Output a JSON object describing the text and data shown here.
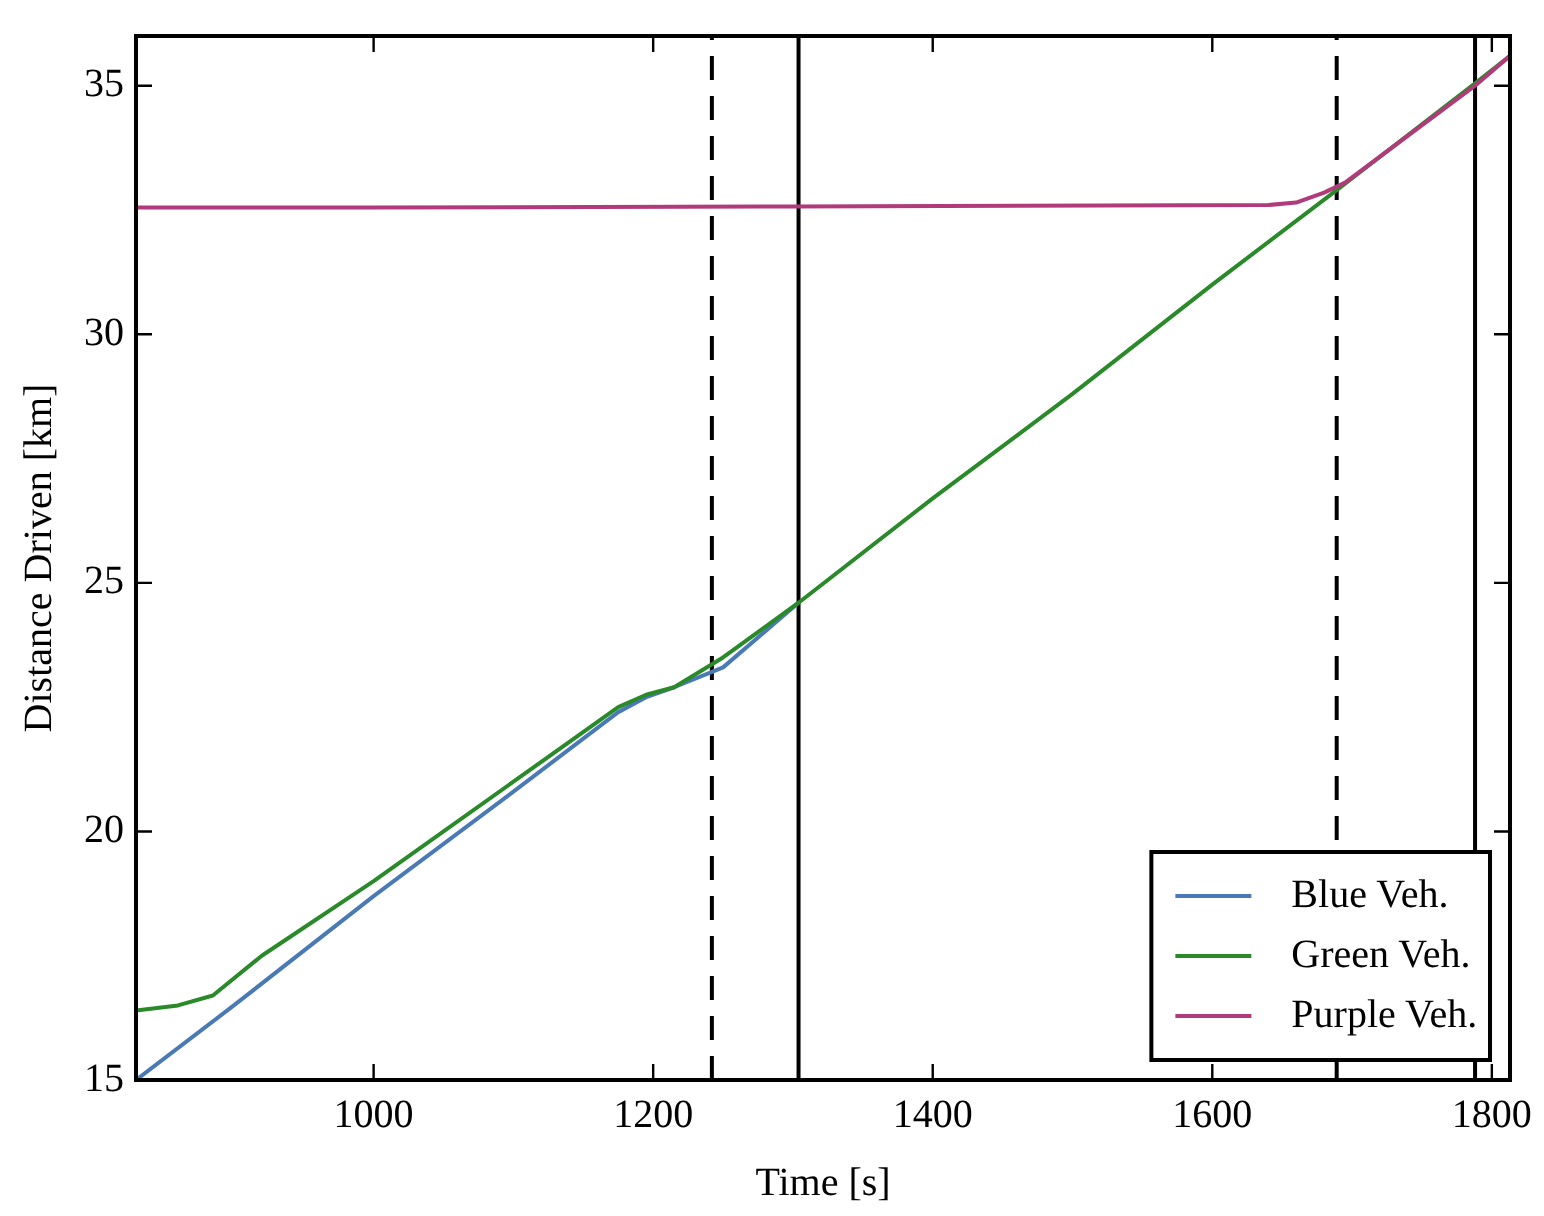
{
  "chart_data": {
    "type": "line",
    "xlabel": "Time [s]",
    "ylabel": "Distance Driven [km]",
    "xlim": [
      830,
      1813
    ],
    "xticks": [
      1000,
      1200,
      1400,
      1600,
      1800
    ],
    "ylim": [
      15,
      36
    ],
    "yticks": [
      15,
      20,
      25,
      30,
      35
    ],
    "grid": false,
    "legend": "bottom right",
    "marker": "none",
    "line_style": "solid",
    "series": [
      {
        "name": "Blue Veh.",
        "color": "#4a7ab5",
        "x": [
          830,
          900,
          1000,
          1100,
          1175,
          1195,
          1215,
          1250,
          1304
        ],
        "values": [
          15,
          16.5,
          18.7,
          20.8,
          22.4,
          22.7,
          22.9,
          23.3,
          24.6
        ]
      },
      {
        "name": "Green Veh.",
        "color": "#2a8a2a",
        "x": [
          830,
          860,
          885,
          920,
          1000,
          1100,
          1175,
          1195,
          1215,
          1250,
          1304,
          1400,
          1500,
          1600,
          1689,
          1788,
          1813
        ],
        "values": [
          16.4,
          16.5,
          16.7,
          17.5,
          19.0,
          21.0,
          22.5,
          22.75,
          22.9,
          23.5,
          24.6,
          26.7,
          28.8,
          31.0,
          32.9,
          35.05,
          35.6
        ]
      },
      {
        "name": "Purple Veh.",
        "color": "#b03a7a",
        "x": [
          830,
          1000,
          1300,
          1640,
          1660,
          1680,
          1695,
          1788,
          1813
        ],
        "values": [
          32.55,
          32.55,
          32.57,
          32.6,
          32.65,
          32.85,
          33.05,
          35.0,
          35.6
        ]
      }
    ],
    "ref_lines": [
      {
        "axis": "x",
        "value": 1242,
        "color": "#000000",
        "line_style": "dashed"
      },
      {
        "axis": "x",
        "value": 1304,
        "color": "#000000",
        "line_style": "solid"
      },
      {
        "axis": "x",
        "value": 1689,
        "color": "#000000",
        "line_style": "dashed"
      },
      {
        "axis": "x",
        "value": 1788,
        "color": "#000000",
        "line_style": "solid"
      }
    ]
  }
}
